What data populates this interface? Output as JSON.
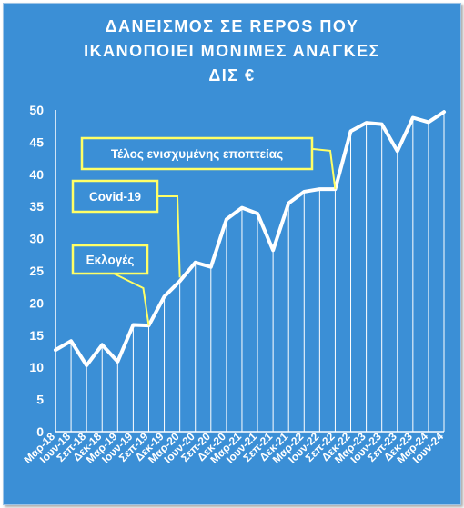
{
  "title_lines": [
    "ΔΑΝΕΙΣΜΟΣ ΣΕ REPOS ΠΟΥ",
    "ΙΚΑΝΟΠΟΙΕΙ ΜΟΝΙΜΕΣ ΑΝΑΓΚΕΣ",
    "ΔΙΣ €"
  ],
  "colors": {
    "background": "#3b8fd6",
    "line": "#ffffff",
    "callout_fill": "#3b8fd6",
    "callout_border": "#ffff66",
    "text": "#ffffff"
  },
  "chart_data": {
    "type": "area",
    "title": "ΔΑΝΕΙΣΜΟΣ ΣΕ REPOS ΠΟΥ ΙΚΑΝΟΠΟΙΕΙ ΜΟΝΙΜΕΣ ΑΝΑΓΚΕΣ ΔΙΣ €",
    "ylim": [
      0,
      50
    ],
    "yticks": [
      0,
      5,
      10,
      15,
      20,
      25,
      30,
      35,
      40,
      45,
      50
    ],
    "grid": "vertical lines at each data point",
    "x": [
      "Μαρ-18",
      "Ιουν-18",
      "Σεπ-18",
      "Δεκ-18",
      "Μαρ-19",
      "Ιουν-19",
      "Σεπ-19",
      "Δεκ-19",
      "Μαρ-20",
      "Ιουν-20",
      "Σεπ-20",
      "Δεκ-20",
      "Μαρ-21",
      "Ιουν-21",
      "Σεπ-21",
      "Δεκ-21",
      "Μαρ-22",
      "Ιουν-22",
      "Σεπ-22",
      "Δεκ-22",
      "Μαρ-23",
      "Ιουν-23",
      "Σεπ-23",
      "Δεκ-23",
      "Μαρ-24",
      "Ιουν-24"
    ],
    "values": [
      12.7,
      14.1,
      10.3,
      13.5,
      10.9,
      16.6,
      16.5,
      21.0,
      23.4,
      26.3,
      25.6,
      33.0,
      34.8,
      33.9,
      28.2,
      35.5,
      37.3,
      37.7,
      37.7,
      46.7,
      48.0,
      47.8,
      43.6,
      48.8,
      48.1,
      49.7
    ],
    "annotations": [
      {
        "text": "Εκλογές",
        "target_index": 6
      },
      {
        "text": "Covid-19",
        "target_index": 8
      },
      {
        "text": "Τέλος ενισχυμένης εποπτείας",
        "target_index": 18
      }
    ]
  }
}
